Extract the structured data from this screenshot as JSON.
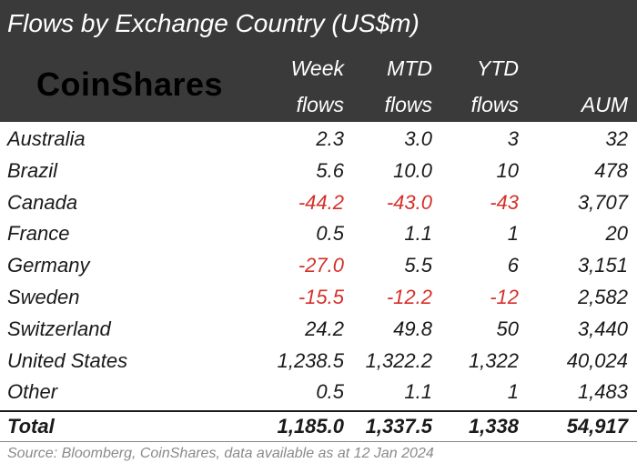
{
  "title": "Flows by Exchange Country (US$m)",
  "logo_text": "CoinShares",
  "colors": {
    "header_bg": "#3a3a3a",
    "negative": "#d6302a",
    "text": "#1a1a1a"
  },
  "chart_data": {
    "type": "table",
    "title": "Flows by Exchange Country (US$m)",
    "columns": [
      {
        "line1": "Week",
        "line2": "flows"
      },
      {
        "line1": "MTD",
        "line2": "flows"
      },
      {
        "line1": "YTD",
        "line2": "flows"
      },
      {
        "line1": "",
        "line2": "AUM"
      }
    ],
    "rows": [
      {
        "name": "Australia",
        "values": [
          "2.3",
          "3.0",
          "3",
          "32"
        ]
      },
      {
        "name": "Brazil",
        "values": [
          "5.6",
          "10.0",
          "10",
          "478"
        ]
      },
      {
        "name": "Canada",
        "values": [
          "-44.2",
          "-43.0",
          "-43",
          "3,707"
        ]
      },
      {
        "name": "France",
        "values": [
          "0.5",
          "1.1",
          "1",
          "20"
        ]
      },
      {
        "name": "Germany",
        "values": [
          "-27.0",
          "5.5",
          "6",
          "3,151"
        ]
      },
      {
        "name": "Sweden",
        "values": [
          "-15.5",
          "-12.2",
          "-12",
          "2,582"
        ]
      },
      {
        "name": "Switzerland",
        "values": [
          "24.2",
          "49.8",
          "50",
          "3,440"
        ]
      },
      {
        "name": "United States",
        "values": [
          "1,238.5",
          "1,322.2",
          "1,322",
          "40,024"
        ]
      },
      {
        "name": "Other",
        "values": [
          "0.5",
          "1.1",
          "1",
          "1,483"
        ]
      }
    ],
    "total": {
      "name": "Total",
      "values": [
        "1,185.0",
        "1,337.5",
        "1,338",
        "54,917"
      ]
    }
  },
  "source": "Source: Bloomberg, CoinShares, data available as at 12 Jan 2024"
}
